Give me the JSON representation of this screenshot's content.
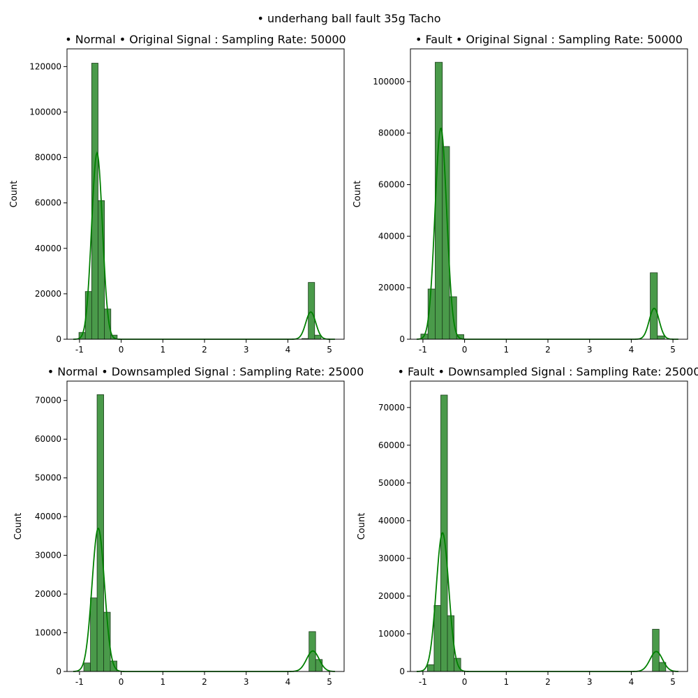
{
  "figure": {
    "suptitle": "• underhang ball fault 35g Tacho",
    "colors": {
      "bar_fill": "#4a9a4a",
      "bar_edge": "#1c3d1c",
      "kde_line": "#008000",
      "axes": "#000000"
    }
  },
  "chart_data": [
    {
      "type": "bar",
      "title": "• Normal • Original Signal : Sampling Rate: 50000",
      "xlabel": "",
      "ylabel": "Count",
      "xlim": [
        -1.3,
        5.35
      ],
      "ylim": [
        0,
        127800
      ],
      "xticks": [
        -1,
        0,
        1,
        2,
        3,
        4,
        5
      ],
      "yticks": [
        0,
        20000,
        40000,
        60000,
        80000,
        100000,
        120000
      ],
      "bin_width": 0.153,
      "bins": [
        {
          "x": -0.937,
          "count": 3000
        },
        {
          "x": -0.784,
          "count": 21000
        },
        {
          "x": -0.631,
          "count": 121500
        },
        {
          "x": -0.478,
          "count": 61000
        },
        {
          "x": -0.325,
          "count": 13300
        },
        {
          "x": -0.172,
          "count": 1800
        },
        {
          "x": 4.413,
          "count": 300
        },
        {
          "x": 4.566,
          "count": 25000
        },
        {
          "x": 4.719,
          "count": 1800
        }
      ],
      "kde": [
        {
          "mu": -0.58,
          "sigma": 0.13,
          "peak": 82000
        },
        {
          "mu": 4.55,
          "sigma": 0.12,
          "peak": 12000
        }
      ]
    },
    {
      "type": "bar",
      "title": "• Fault • Original Signal : Sampling Rate: 50000",
      "xlabel": "",
      "ylabel": "Count",
      "xlim": [
        -1.3,
        5.35
      ],
      "ylim": [
        0,
        112700
      ],
      "xticks": [
        -1,
        0,
        1,
        2,
        3,
        4,
        5
      ],
      "yticks": [
        0,
        20000,
        40000,
        60000,
        80000,
        100000
      ],
      "bin_width": 0.172,
      "bins": [
        {
          "x": -0.964,
          "count": 2000
        },
        {
          "x": -0.792,
          "count": 19500
        },
        {
          "x": -0.62,
          "count": 107500
        },
        {
          "x": -0.448,
          "count": 74800
        },
        {
          "x": -0.276,
          "count": 16500
        },
        {
          "x": -0.104,
          "count": 1800
        },
        {
          "x": 4.541,
          "count": 25800
        },
        {
          "x": 4.713,
          "count": 1300
        }
      ],
      "kde": [
        {
          "mu": -0.57,
          "sigma": 0.14,
          "peak": 82000
        },
        {
          "mu": 4.55,
          "sigma": 0.12,
          "peak": 12000
        }
      ]
    },
    {
      "type": "bar",
      "title": "• Normal • Downsampled Signal : Sampling Rate: 25000",
      "xlabel": "",
      "ylabel": "Count",
      "xlim": [
        -1.3,
        5.35
      ],
      "ylim": [
        0,
        75000
      ],
      "xticks": [
        -1,
        0,
        1,
        2,
        3,
        4,
        5
      ],
      "yticks": [
        0,
        10000,
        20000,
        30000,
        40000,
        50000,
        60000,
        70000
      ],
      "bin_width": 0.159,
      "bins": [
        {
          "x": -0.817,
          "count": 2200
        },
        {
          "x": -0.658,
          "count": 19000
        },
        {
          "x": -0.499,
          "count": 71500
        },
        {
          "x": -0.34,
          "count": 15300
        },
        {
          "x": -0.181,
          "count": 2700
        },
        {
          "x": 4.587,
          "count": 10300
        },
        {
          "x": 4.746,
          "count": 3100
        }
      ],
      "kde": [
        {
          "mu": -0.55,
          "sigma": 0.15,
          "peak": 37000
        },
        {
          "mu": 4.6,
          "sigma": 0.15,
          "peak": 5300
        }
      ]
    },
    {
      "type": "bar",
      "title": "• Fault • Downsampled Signal : Sampling Rate: 25000",
      "xlabel": "",
      "ylabel": "Count",
      "xlim": [
        -1.3,
        5.35
      ],
      "ylim": [
        0,
        77000
      ],
      "xticks": [
        -1,
        0,
        1,
        2,
        3,
        4,
        5
      ],
      "yticks": [
        0,
        10000,
        20000,
        30000,
        40000,
        50000,
        60000,
        70000
      ],
      "bin_width": 0.16,
      "bins": [
        {
          "x": -0.812,
          "count": 1800
        },
        {
          "x": -0.652,
          "count": 17500
        },
        {
          "x": -0.492,
          "count": 73300
        },
        {
          "x": -0.332,
          "count": 14800
        },
        {
          "x": -0.172,
          "count": 3500
        },
        {
          "x": 4.588,
          "count": 11200
        },
        {
          "x": 4.748,
          "count": 2400
        }
      ],
      "kde": [
        {
          "mu": -0.53,
          "sigma": 0.15,
          "peak": 36800
        },
        {
          "mu": 4.6,
          "sigma": 0.15,
          "peak": 5300
        }
      ]
    }
  ]
}
